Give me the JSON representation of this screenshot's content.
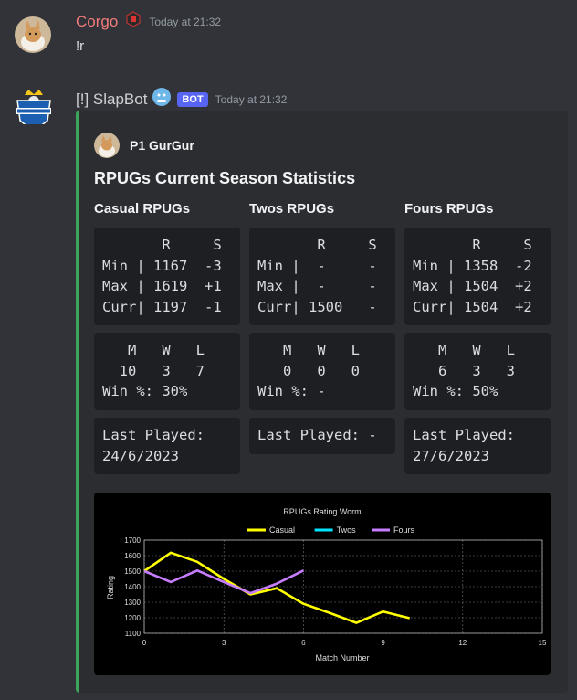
{
  "messages": [
    {
      "username": "Corgo",
      "timestamp": "Today at 21:32",
      "content": "!r"
    },
    {
      "username": "[!] SlapBot",
      "bot_tag": "BOT",
      "timestamp": "Today at 21:32"
    }
  ],
  "colors": {
    "background": "#313338",
    "embed_background": "#2b2d31",
    "embed_border": "#3ba55c",
    "corgo_name": "#f27a7a",
    "bot_tag": "#5865f2",
    "casual_series": "#ffff00",
    "twos_series": "#00e5ff",
    "fours_series": "#c77dff"
  },
  "embed": {
    "author": "P1 GurGur",
    "title": "RPUGs Current Season Statistics",
    "columns": [
      {
        "title": "Casual RPUGs",
        "stats_header": "       R     S",
        "stats_rows": [
          "Min | 1167  -3",
          "Max | 1619  +1",
          "Curr| 1197  -1"
        ],
        "record_header": "   M   W   L",
        "record_values": "  10   3   7",
        "win_pct": "Win %: 30%",
        "last_played_label": "Last Played:",
        "last_played_date": "24/6/2023"
      },
      {
        "title": "Twos RPUGs",
        "stats_header": "       R     S",
        "stats_rows": [
          "Min |  -     -",
          "Max |  -     -",
          "Curr| 1500   -"
        ],
        "record_header": "   M   W   L",
        "record_values": "   0   0   0",
        "win_pct": "Win %: -",
        "last_played_label": "Last Played: -",
        "last_played_date": ""
      },
      {
        "title": "Fours RPUGs",
        "stats_header": "       R     S",
        "stats_rows": [
          "Min | 1358  -2",
          "Max | 1504  +2",
          "Curr| 1504  +2"
        ],
        "record_header": "   M   W   L",
        "record_values": "   6   3   3",
        "win_pct": "Win %: 50%",
        "last_played_label": "Last Played:",
        "last_played_date": "27/6/2023"
      }
    ]
  },
  "chart_data": {
    "type": "line",
    "title": "RPUGs Rating Worm",
    "xlabel": "Match Number",
    "ylabel": "Rating",
    "xlim": [
      0,
      15
    ],
    "ylim": [
      1100,
      1700
    ],
    "xticks": [
      0,
      3,
      6,
      9,
      12,
      15
    ],
    "yticks": [
      1100,
      1200,
      1300,
      1400,
      1500,
      1600,
      1700
    ],
    "grid": true,
    "legend_position": "top",
    "series": [
      {
        "name": "Casual",
        "color": "#ffff00",
        "x": [
          0,
          1,
          2,
          3,
          4,
          5,
          6,
          7,
          8,
          9,
          10
        ],
        "y": [
          1500,
          1619,
          1560,
          1450,
          1350,
          1390,
          1290,
          1230,
          1167,
          1240,
          1197
        ]
      },
      {
        "name": "Twos",
        "color": "#00e5ff",
        "x": [],
        "y": []
      },
      {
        "name": "Fours",
        "color": "#c77dff",
        "x": [
          0,
          1,
          2,
          3,
          4,
          5,
          6
        ],
        "y": [
          1500,
          1430,
          1504,
          1430,
          1358,
          1420,
          1504
        ]
      }
    ]
  }
}
